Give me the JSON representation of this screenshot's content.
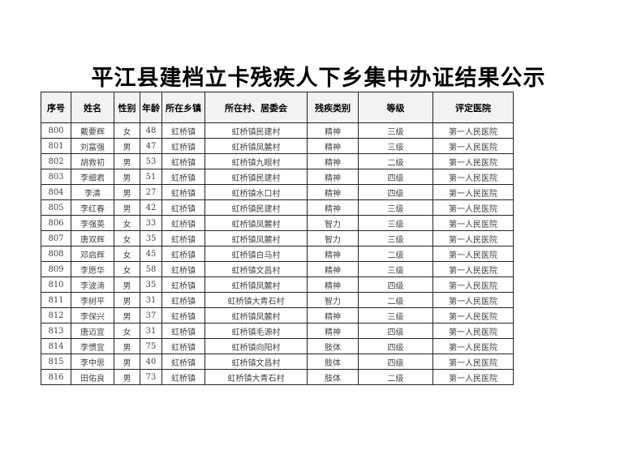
{
  "title": "平江县建档立卡残疾人下乡集中办证结果公示",
  "headers": [
    "序号",
    "姓名",
    "性别",
    "年龄",
    "所在乡镇",
    "所在村、居委会",
    "残疾类别",
    "等级",
    "评定医院"
  ],
  "rows": [
    [
      "800",
      "戴要辉",
      "女",
      "48",
      "虹桥镇",
      "虹桥镇民建村",
      "精神",
      "三级",
      "第一人民医院"
    ],
    [
      "801",
      "刘富强",
      "男",
      "47",
      "虹桥镇",
      "虹桥镇凤麓村",
      "精神",
      "三级",
      "第一人民医院"
    ],
    [
      "802",
      "胡救初",
      "男",
      "53",
      "虹桥镇",
      "虹桥镇九眼村",
      "精神",
      "二级",
      "第一人民医院"
    ],
    [
      "803",
      "李细君",
      "男",
      "51",
      "虹桥镇",
      "虹桥镇民建村",
      "精神",
      "四级",
      "第一人民医院"
    ],
    [
      "804",
      "李清",
      "男",
      "27",
      "虹桥镇",
      "虹桥镇水口村",
      "精神",
      "四级",
      "第一人民医院"
    ],
    [
      "805",
      "李红春",
      "男",
      "42",
      "虹桥镇",
      "虹桥镇民建村",
      "精神",
      "三级",
      "第一人民医院"
    ],
    [
      "806",
      "李强英",
      "女",
      "33",
      "虹桥镇",
      "虹桥镇凤麓村",
      "智力",
      "三级",
      "第一人民医院"
    ],
    [
      "807",
      "唐双辉",
      "女",
      "35",
      "虹桥镇",
      "虹桥镇凤麓村",
      "智力",
      "三级",
      "第一人民医院"
    ],
    [
      "808",
      "邓启辉",
      "女",
      "45",
      "虹桥镇",
      "虹桥镇白马村",
      "精神",
      "二级",
      "第一人民医院"
    ],
    [
      "809",
      "李愿华",
      "女",
      "58",
      "虹桥镇",
      "虹桥镇文昌村",
      "精神",
      "三级",
      "第一人民医院"
    ],
    [
      "810",
      "李波涛",
      "男",
      "35",
      "虹桥镇",
      "虹桥镇凤麓村",
      "精神",
      "四级",
      "第一人民医院"
    ],
    [
      "811",
      "李树平",
      "男",
      "31",
      "虹桥镇",
      "虹桥镇大青石村",
      "智力",
      "二级",
      "第一人民医院"
    ],
    [
      "812",
      "李保兴",
      "男",
      "37",
      "虹桥镇",
      "虹桥镇凤麓村",
      "精神",
      "三级",
      "第一人民医院"
    ],
    [
      "813",
      "唐迈宜",
      "女",
      "31",
      "虹桥镇",
      "虹桥镇毛源村",
      "精神",
      "四级",
      "第一人民医院"
    ],
    [
      "814",
      "李惯宜",
      "男",
      "75",
      "虹桥镇",
      "虹桥镇向阳村",
      "肢体",
      "四级",
      "第一人民医院"
    ],
    [
      "815",
      "李中思",
      "男",
      "40",
      "虹桥镇",
      "虹桥镇文昌村",
      "肢体",
      "四级",
      "第一人民医院"
    ],
    [
      "816",
      "田佑良",
      "男",
      "73",
      "虹桥镇",
      "虹桥镇大青石村",
      "肢体",
      "二级",
      "第一人民医院"
    ]
  ]
}
